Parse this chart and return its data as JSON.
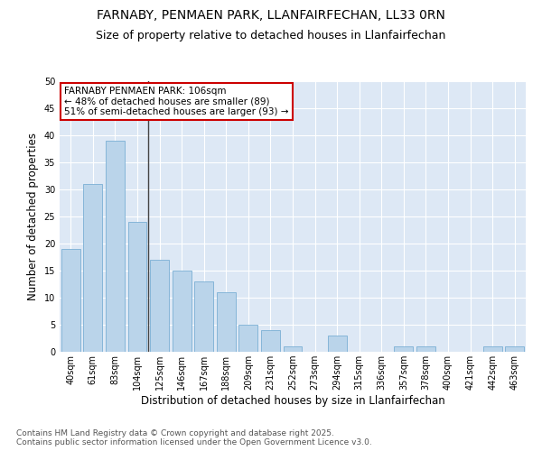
{
  "title_line1": "FARNABY, PENMAEN PARK, LLANFAIRFECHAN, LL33 0RN",
  "title_line2": "Size of property relative to detached houses in Llanfairfechan",
  "xlabel": "Distribution of detached houses by size in Llanfairfechan",
  "ylabel": "Number of detached properties",
  "categories": [
    "40sqm",
    "61sqm",
    "83sqm",
    "104sqm",
    "125sqm",
    "146sqm",
    "167sqm",
    "188sqm",
    "209sqm",
    "231sqm",
    "252sqm",
    "273sqm",
    "294sqm",
    "315sqm",
    "336sqm",
    "357sqm",
    "378sqm",
    "400sqm",
    "421sqm",
    "442sqm",
    "463sqm"
  ],
  "values": [
    19,
    31,
    39,
    24,
    17,
    15,
    13,
    11,
    5,
    4,
    1,
    0,
    3,
    0,
    0,
    1,
    1,
    0,
    0,
    1,
    1
  ],
  "bar_color": "#bad4ea",
  "bar_edge_color": "#7aafd4",
  "annotation_text": "FARNABY PENMAEN PARK: 106sqm\n← 48% of detached houses are smaller (89)\n51% of semi-detached houses are larger (93) →",
  "annotation_box_color": "#ffffff",
  "annotation_box_edge_color": "#cc0000",
  "vline_x": 3.5,
  "ylim": [
    0,
    50
  ],
  "yticks": [
    0,
    5,
    10,
    15,
    20,
    25,
    30,
    35,
    40,
    45,
    50
  ],
  "background_color": "#dde8f5",
  "footer_text": "Contains HM Land Registry data © Crown copyright and database right 2025.\nContains public sector information licensed under the Open Government Licence v3.0.",
  "title_fontsize": 10,
  "subtitle_fontsize": 9,
  "axis_label_fontsize": 8.5,
  "tick_fontsize": 7,
  "footer_fontsize": 6.5,
  "annotation_fontsize": 7.5
}
